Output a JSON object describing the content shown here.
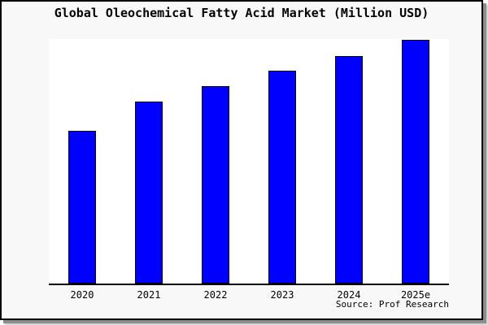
{
  "chart_data": {
    "type": "bar",
    "title": "Global Oleochemical Fatty Acid Market (Million USD)",
    "categories": [
      "2020",
      "2021",
      "2022",
      "2023",
      "2024",
      "2025e"
    ],
    "values": [
      626,
      748,
      811,
      874,
      934,
      1000
    ],
    "xlabel": "",
    "ylabel": "",
    "ylim": [
      0,
      1003
    ],
    "grid": false,
    "legend": false,
    "source": "Source: Prof Research"
  },
  "colors": {
    "bar_fill": "#0000fe",
    "bar_border": "#000000",
    "frame_background": "#f8f8f8",
    "plot_background": "#ffffff",
    "frame_border": "#000000",
    "text": "#000000"
  }
}
